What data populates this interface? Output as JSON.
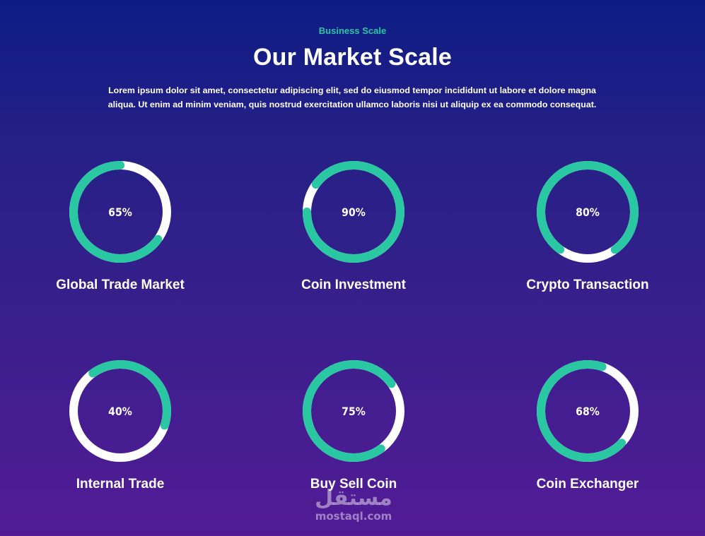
{
  "header": {
    "eyebrow": "Business Scale",
    "title": "Our Market Scale",
    "description": "Lorem ipsum dolor sit amet, consectetur adipiscing elit, sed do eiusmod tempor incididunt ut labore et dolore magna aliqua. Ut enim ad minim veniam, quis nostrud exercitation ullamco laboris nisi ut aliquip ex ea commodo consequat."
  },
  "colors": {
    "accent": "#2ac7a3",
    "track": "#ffffff",
    "background_top": "#0d1c85",
    "background_bottom": "#531b96"
  },
  "stats": [
    {
      "label": "Global Trade Market",
      "percent_text": "65%",
      "value": 65
    },
    {
      "label": "Coin Investment",
      "percent_text": "90%",
      "value": 90
    },
    {
      "label": "Crypto Transaction",
      "percent_text": "80%",
      "value": 80
    },
    {
      "label": "Internal Trade",
      "percent_text": "40%",
      "value": 40
    },
    {
      "label": "Buy Sell Coin",
      "percent_text": "75%",
      "value": 75
    },
    {
      "label": "Coin Exchanger",
      "percent_text": "68%",
      "value": 68
    }
  ],
  "watermark": {
    "arabic": "مستقل",
    "latin": "mostaql.com"
  }
}
